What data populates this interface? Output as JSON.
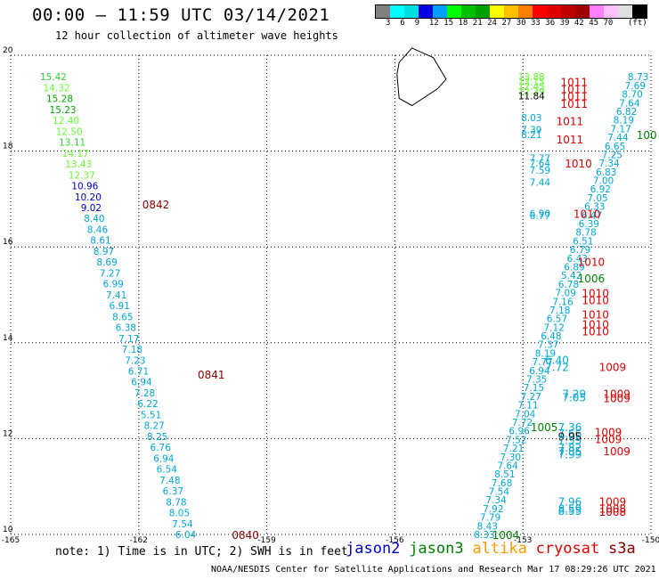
{
  "header": {
    "title": "00:00 – 11:59 UTC 03/14/2021",
    "subtitle": "12 hour collection of altimeter wave heights"
  },
  "color_scale": {
    "colors": [
      "#808080",
      "#00ffff",
      "#00e0e0",
      "#0000e0",
      "#00a0ff",
      "#00ff00",
      "#00c000",
      "#00a000",
      "#ffff00",
      "#ffc000",
      "#ff8000",
      "#ff0000",
      "#e00000",
      "#c00000",
      "#a00000",
      "#ff80ff",
      "#ffc0ff",
      "#e0e0e0",
      "#000000"
    ],
    "labels": [
      "3",
      "6",
      "9",
      "12",
      "15",
      "18",
      "21",
      "24",
      "27",
      "30",
      "33",
      "36",
      "39",
      "42",
      "45",
      "70"
    ],
    "unit": "(ft)"
  },
  "footer": {
    "note": "note: 1) Time is in UTC; 2) SWH is in feet",
    "credit": "NOAA/NESDIS Center for Satellite Applications and Research   Mar 17 08:29:26 UTC 2021",
    "satellites": [
      {
        "name": "jason2",
        "color": "#0000cc"
      },
      {
        "name": "jason3",
        "color": "#008000"
      },
      {
        "name": "altika",
        "color": "#ff9900"
      },
      {
        "name": "cryosat",
        "color": "#dd0000"
      },
      {
        "name": "s3a",
        "color": "#880000"
      }
    ]
  },
  "chart_data": {
    "type": "scatter",
    "xlim": [
      -165,
      -150
    ],
    "ylim": [
      10,
      20
    ],
    "xticks": [
      "-165",
      "-162",
      "-159",
      "-156",
      "-153",
      "-150"
    ],
    "yticks": [
      "20",
      "18",
      "16",
      "14",
      "12",
      "10"
    ],
    "grid": true,
    "track_west": {
      "x_start": -164.0,
      "y_start": 19.55,
      "x_end": -160.9,
      "y_end": 10.0,
      "values": [
        "15.42",
        "14.32",
        "15.28",
        "15.23",
        "12.40",
        "12.50",
        "13.11",
        "14.17",
        "13.43",
        "12.37",
        "10.96",
        "10.20",
        "9.02",
        "8.40",
        "8.46",
        "8.61",
        "8.97",
        "8.69",
        "7.27",
        "6.99",
        "7.41",
        "6.91",
        "8.65",
        "6.38",
        "7.17",
        "7.18",
        "7.23",
        "6.71",
        "6.94",
        "7.28",
        "6.22",
        "5.51",
        "8.27",
        "8.25",
        "6.76",
        "6.94",
        "6.54",
        "7.48",
        "6.37",
        "8.78",
        "8.05",
        "7.54",
        "6.04"
      ],
      "colors": [
        "#33cc33",
        "#66ff33",
        "#00aa00",
        "#00aa00",
        "#66ff33",
        "#66ff33",
        "#33cc33",
        "#66ff33",
        "#66ff33",
        "#66ff33",
        "#0000cc",
        "#0000cc",
        "#0000cc",
        "#00a6d6",
        "#00a6d6",
        "#00a6d6",
        "#00a6d6",
        "#00a6d6",
        "#00a6d6",
        "#00a6d6",
        "#00a6d6",
        "#00a6d6",
        "#00a6d6",
        "#00a6d6",
        "#00a6d6",
        "#00a6d6",
        "#00a6d6",
        "#00a6d6",
        "#00a6d6",
        "#00a6d6",
        "#00a6d6",
        "#00a6d6",
        "#00a6d6",
        "#00a6d6",
        "#00a6d6",
        "#00a6d6",
        "#00a6d6",
        "#00a6d6",
        "#00a6d6",
        "#00a6d6",
        "#00a6d6",
        "#00a6d6",
        "#00a6d6"
      ]
    },
    "track_east": {
      "x_start": -150.3,
      "y_start": 19.55,
      "x_end": -153.9,
      "y_end": 10.0,
      "values": [
        "8.73",
        "7.69",
        "8.70",
        "7.64",
        "6.82",
        "8.19",
        "7.17",
        "7.44",
        "6.65",
        "7.25",
        "7.34",
        "6.83",
        "7.00",
        "6.92",
        "7.05",
        "6.33",
        "6.47",
        "6.39",
        "8.78",
        "6.51",
        "6.79",
        "6.43",
        "6.89",
        "5.42",
        "6.78",
        "7.09",
        "7.16",
        "7.18",
        "6.57",
        "7.12",
        "6.48",
        "7.37",
        "8.19",
        "7.77",
        "6.94",
        "7.35",
        "7.15",
        "7.27",
        "7.11",
        "7.04",
        "7.72",
        "6.96",
        "7.52",
        "7.21",
        "7.30",
        "7.64",
        "8.51",
        "7.68",
        "7.54",
        "7.34",
        "7.92",
        "7.79",
        "8.43",
        "8.33"
      ],
      "color": "#00a6d6"
    },
    "track_mid": {
      "x_start": -152.8,
      "y_start": 19.55,
      "x_end": -152.5,
      "y_end": 18.3,
      "values": [
        "13.88",
        "13.15",
        "12.45",
        "12.39",
        "11.84",
        "8.03",
        "7.39",
        "8.21",
        "7.77",
        "7.64",
        "7.59",
        "7.44",
        "6.90",
        "6.77"
      ],
      "colors": [
        "#66ff33",
        "#66ff33",
        "#66ff33",
        "#66ff33",
        "#000000",
        "#00a6d6",
        "#00a6d6",
        "#00a6d6",
        "#00a6d6",
        "#00a6d6",
        "#00a6d6",
        "#00a6d6",
        "#00a6d6",
        "#00a6d6"
      ]
    },
    "labels": [
      {
        "text": "0842",
        "x": -161.6,
        "y": 16.9,
        "color": "#880000"
      },
      {
        "text": "0841",
        "x": -160.3,
        "y": 13.35,
        "color": "#880000"
      },
      {
        "text": "0840",
        "x": -159.5,
        "y": 10.0,
        "color": "#880000"
      },
      {
        "text": "1011",
        "x": -151.8,
        "y": 19.45,
        "color": "#dd0000"
      },
      {
        "text": "1011",
        "x": -151.8,
        "y": 19.3,
        "color": "#dd0000"
      },
      {
        "text": "1011",
        "x": -151.8,
        "y": 19.15,
        "color": "#dd0000"
      },
      {
        "text": "1011",
        "x": -151.8,
        "y": 19.0,
        "color": "#dd0000"
      },
      {
        "text": "1011",
        "x": -151.9,
        "y": 18.63,
        "color": "#dd0000"
      },
      {
        "text": "1011",
        "x": -151.9,
        "y": 18.25,
        "color": "#dd0000"
      },
      {
        "text": "1010",
        "x": -151.7,
        "y": 17.75,
        "color": "#dd0000"
      },
      {
        "text": "1010",
        "x": -151.5,
        "y": 16.7,
        "color": "#dd0000"
      },
      {
        "text": "1010",
        "x": -151.4,
        "y": 15.7,
        "color": "#dd0000"
      },
      {
        "text": "1010",
        "x": -151.3,
        "y": 15.05,
        "color": "#dd0000"
      },
      {
        "text": "1010",
        "x": -151.3,
        "y": 14.9,
        "color": "#dd0000"
      },
      {
        "text": "1010",
        "x": -151.3,
        "y": 14.6,
        "color": "#dd0000"
      },
      {
        "text": "1010",
        "x": -151.3,
        "y": 14.4,
        "color": "#dd0000"
      },
      {
        "text": "1010",
        "x": -151.3,
        "y": 14.25,
        "color": "#dd0000"
      },
      {
        "text": "1009",
        "x": -150.9,
        "y": 13.5,
        "color": "#dd0000"
      },
      {
        "text": "1009",
        "x": -150.8,
        "y": 12.95,
        "color": "#dd0000"
      },
      {
        "text": "1009",
        "x": -150.8,
        "y": 12.85,
        "color": "#dd0000"
      },
      {
        "text": "1009",
        "x": -151.0,
        "y": 12.15,
        "color": "#dd0000"
      },
      {
        "text": "1009",
        "x": -151.0,
        "y": 12.0,
        "color": "#dd0000"
      },
      {
        "text": "1009",
        "x": -150.8,
        "y": 11.75,
        "color": "#dd0000"
      },
      {
        "text": "1009",
        "x": -150.9,
        "y": 10.7,
        "color": "#dd0000"
      },
      {
        "text": "1008",
        "x": -150.9,
        "y": 10.55,
        "color": "#dd0000"
      },
      {
        "text": "1008",
        "x": -150.9,
        "y": 10.48,
        "color": "#dd0000"
      },
      {
        "text": "100",
        "x": -150.1,
        "y": 18.35,
        "color": "#008000"
      },
      {
        "text": "1006",
        "x": -151.4,
        "y": 15.35,
        "color": "#008000"
      },
      {
        "text": "1005",
        "x": -152.5,
        "y": 12.25,
        "color": "#008000"
      },
      {
        "text": "1004",
        "x": -153.4,
        "y": 10.0,
        "color": "#008000"
      },
      {
        "text": "6.40",
        "x": -152.2,
        "y": 13.65,
        "color": "#00a6d6"
      },
      {
        "text": "7.72",
        "x": -152.2,
        "y": 13.5,
        "color": "#00a6d6"
      },
      {
        "text": "7.29",
        "x": -151.8,
        "y": 12.95,
        "color": "#00a6d6"
      },
      {
        "text": "7.05",
        "x": -151.8,
        "y": 12.87,
        "color": "#00a6d6"
      },
      {
        "text": "7.36",
        "x": -151.9,
        "y": 12.25,
        "color": "#00a6d6"
      },
      {
        "text": "7.66",
        "x": -151.9,
        "y": 12.12,
        "color": "#00a6d6"
      },
      {
        "text": "9.95",
        "x": -151.9,
        "y": 12.05,
        "color": "#000000"
      },
      {
        "text": "7.55",
        "x": -151.9,
        "y": 11.98,
        "color": "#00a6d6"
      },
      {
        "text": "7.82",
        "x": -151.9,
        "y": 11.82,
        "color": "#00a6d6"
      },
      {
        "text": "7.85",
        "x": -151.9,
        "y": 11.75,
        "color": "#00a6d6"
      },
      {
        "text": "7.99",
        "x": -151.9,
        "y": 11.68,
        "color": "#00a6d6"
      },
      {
        "text": "7.96",
        "x": -151.9,
        "y": 10.7,
        "color": "#00a6d6"
      },
      {
        "text": "8.59",
        "x": -151.9,
        "y": 10.55,
        "color": "#00a6d6"
      },
      {
        "text": "8.55",
        "x": -151.9,
        "y": 10.5,
        "color": "#00a6d6"
      }
    ],
    "coastline": [
      [
        -155.9,
        19.85
      ],
      [
        -155.6,
        20.15
      ],
      [
        -155.1,
        19.95
      ],
      [
        -154.8,
        19.5
      ],
      [
        -155.0,
        19.3
      ],
      [
        -155.6,
        18.95
      ],
      [
        -155.9,
        19.1
      ],
      [
        -155.95,
        19.6
      ]
    ]
  }
}
